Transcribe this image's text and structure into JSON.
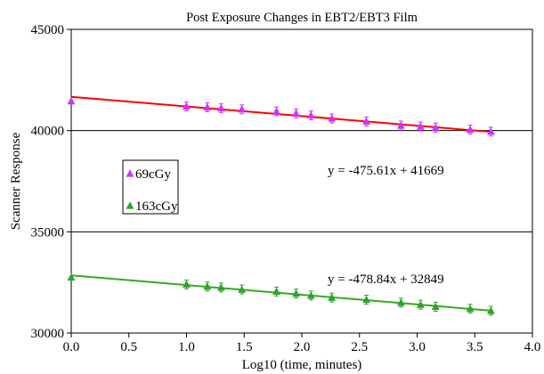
{
  "chart_data": {
    "type": "scatter",
    "title": "Post Exposure Changes in EBT2/EBT3 Film",
    "xlabel": "Log10 (time, minutes)",
    "ylabel": "Scanner Response",
    "xlim": [
      0.0,
      4.0
    ],
    "ylim": [
      30000,
      45000
    ],
    "x_ticks": [
      "0.0",
      "0.5",
      "1.0",
      "1.5",
      "2.0",
      "2.5",
      "3.0",
      "3.5",
      "4.0"
    ],
    "y_ticks": [
      "30000",
      "35000",
      "40000",
      "45000"
    ],
    "grid": "horizontal major lines",
    "legend_position": "left-middle",
    "series": [
      {
        "name": "69cGy",
        "marker": "triangle",
        "color": "#cc33ff",
        "trendline_color": "#ff0000",
        "x": [
          0.0,
          1.0,
          1.18,
          1.3,
          1.48,
          1.78,
          1.95,
          2.08,
          2.26,
          2.56,
          2.86,
          3.03,
          3.16,
          3.46,
          3.64
        ],
        "y": [
          41450,
          41200,
          41150,
          41100,
          41050,
          40950,
          40850,
          40750,
          40600,
          40450,
          40250,
          40200,
          40150,
          40050,
          39950
        ],
        "trendline": {
          "slope": -475.61,
          "intercept": 41669,
          "equation": "y = -475.61x + 41669"
        }
      },
      {
        "name": "163cGy",
        "marker": "triangle",
        "color": "#33a02c",
        "trendline_color": "#33aa22",
        "x": [
          0.0,
          1.0,
          1.18,
          1.3,
          1.48,
          1.78,
          1.95,
          2.08,
          2.26,
          2.56,
          2.86,
          3.03,
          3.16,
          3.46,
          3.64
        ],
        "y": [
          32750,
          32400,
          32300,
          32250,
          32150,
          32050,
          31950,
          31850,
          31750,
          31650,
          31500,
          31400,
          31300,
          31200,
          31100
        ],
        "trendline": {
          "slope": -478.84,
          "intercept": 32849,
          "equation": "y = -478.84x + 32849"
        }
      }
    ]
  }
}
